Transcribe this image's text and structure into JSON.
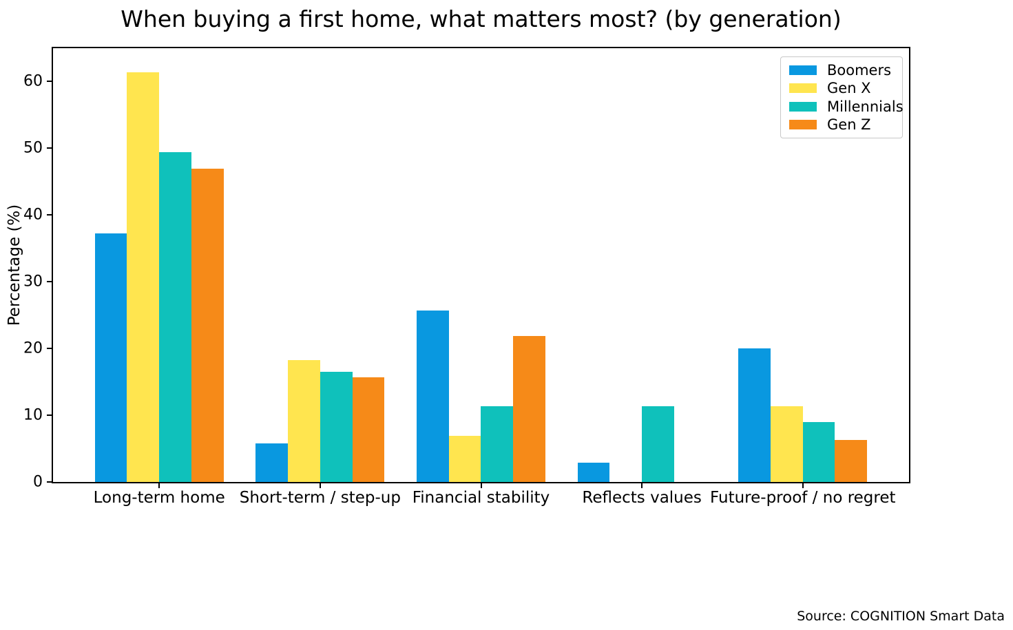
{
  "chart_data": {
    "type": "bar",
    "title": "When buying a first home, what matters most? (by generation)",
    "ylabel": "Percentage (%)",
    "xlabel": "",
    "categories": [
      "Long-term home",
      "Short-term / step-up",
      "Financial stability",
      "Reflects values",
      "Future-proof / no regret"
    ],
    "series": [
      {
        "name": "Boomers",
        "color": "#0998e0",
        "values": [
          37.2,
          5.8,
          25.7,
          2.9,
          20.0
        ]
      },
      {
        "name": "Gen X",
        "color": "#ffe54f",
        "values": [
          61.4,
          18.3,
          6.9,
          0,
          11.4
        ]
      },
      {
        "name": "Millennials",
        "color": "#0fc1bb",
        "values": [
          49.4,
          16.5,
          11.4,
          11.4,
          9.0
        ]
      },
      {
        "name": "Gen Z",
        "color": "#f68a18",
        "values": [
          46.9,
          15.7,
          21.9,
          0,
          6.3
        ]
      }
    ],
    "ylim": [
      0,
      65
    ],
    "yticks": [
      0,
      10,
      20,
      30,
      40,
      50,
      60
    ],
    "legend_position": "upper right",
    "grid": false
  },
  "source": "Source: COGNITION Smart Data"
}
